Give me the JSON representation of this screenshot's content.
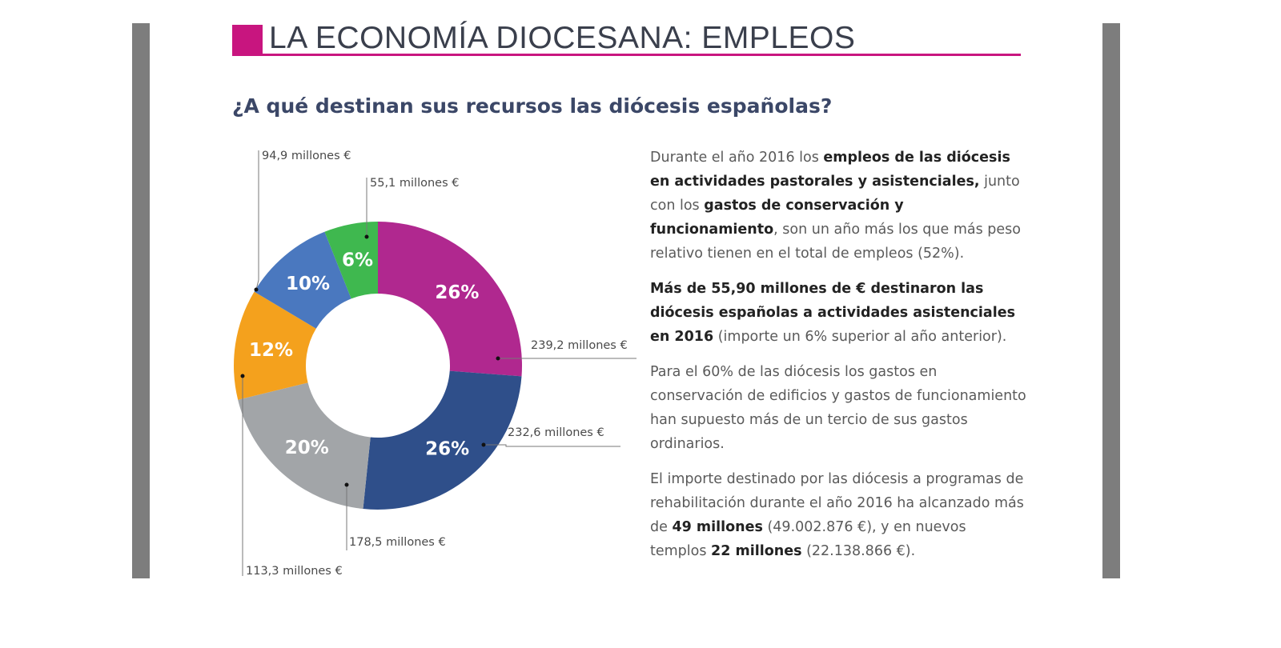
{
  "header": {
    "title": "LA ECONOMÍA DIOCESANA: EMPLEOS",
    "subtitle": "¿A qué destinan sus recursos las diócesis españolas?",
    "accent_color": "#c8157f"
  },
  "chart_data": {
    "type": "pie",
    "donut": true,
    "title": "",
    "slices": [
      {
        "percent_label": "26%",
        "value": 239.2,
        "value_label": "239,2 millones €",
        "color": "#b0288f"
      },
      {
        "percent_label": "26%",
        "value": 232.6,
        "value_label": "232,6 millones €",
        "color": "#2f4f8a"
      },
      {
        "percent_label": "20%",
        "value": 178.5,
        "value_label": "178,5 millones €",
        "color": "#a2a5a8"
      },
      {
        "percent_label": "12%",
        "value": 113.3,
        "value_label": "113,3 millones €",
        "color": "#f4a11d"
      },
      {
        "percent_label": "10%",
        "value": 94.9,
        "value_label": "94,9 millones €",
        "color": "#4a78bf"
      },
      {
        "percent_label": "6%",
        "value": 55.1,
        "value_label": "55,1 millones €",
        "color": "#3fb84f"
      }
    ]
  },
  "body": {
    "paragraphs": [
      [
        {
          "t": "Durante el año 2016 los "
        },
        {
          "t": "empleos de las diócesis en actividades pastorales y asistenciales,",
          "b": true
        },
        {
          "t": " junto con los "
        },
        {
          "t": "gastos de conservación y funcionamiento",
          "b": true
        },
        {
          "t": ", son un año más los que más peso relativo tienen en el total de empleos (52%)."
        }
      ],
      [
        {
          "t": "Más de 55,90 millones de € destinaron las diócesis españolas a actividades asistenciales en 2016",
          "b": true
        },
        {
          "t": " (importe un 6% superior al año anterior)."
        }
      ],
      [
        {
          "t": "Para el 60% de las diócesis los gastos en conservación de edificios y gastos de funcionamiento han supuesto más de un tercio de sus gastos ordinarios."
        }
      ],
      [
        {
          "t": "El importe destinado por las diócesis a programas de rehabilitación durante el año 2016 ha alcanzado más de "
        },
        {
          "t": "49 millones",
          "b": true
        },
        {
          "t": " (49.002.876 €), y en nuevos templos "
        },
        {
          "t": "22 millones",
          "b": true
        },
        {
          "t": " (22.138.866 €)."
        }
      ]
    ]
  }
}
